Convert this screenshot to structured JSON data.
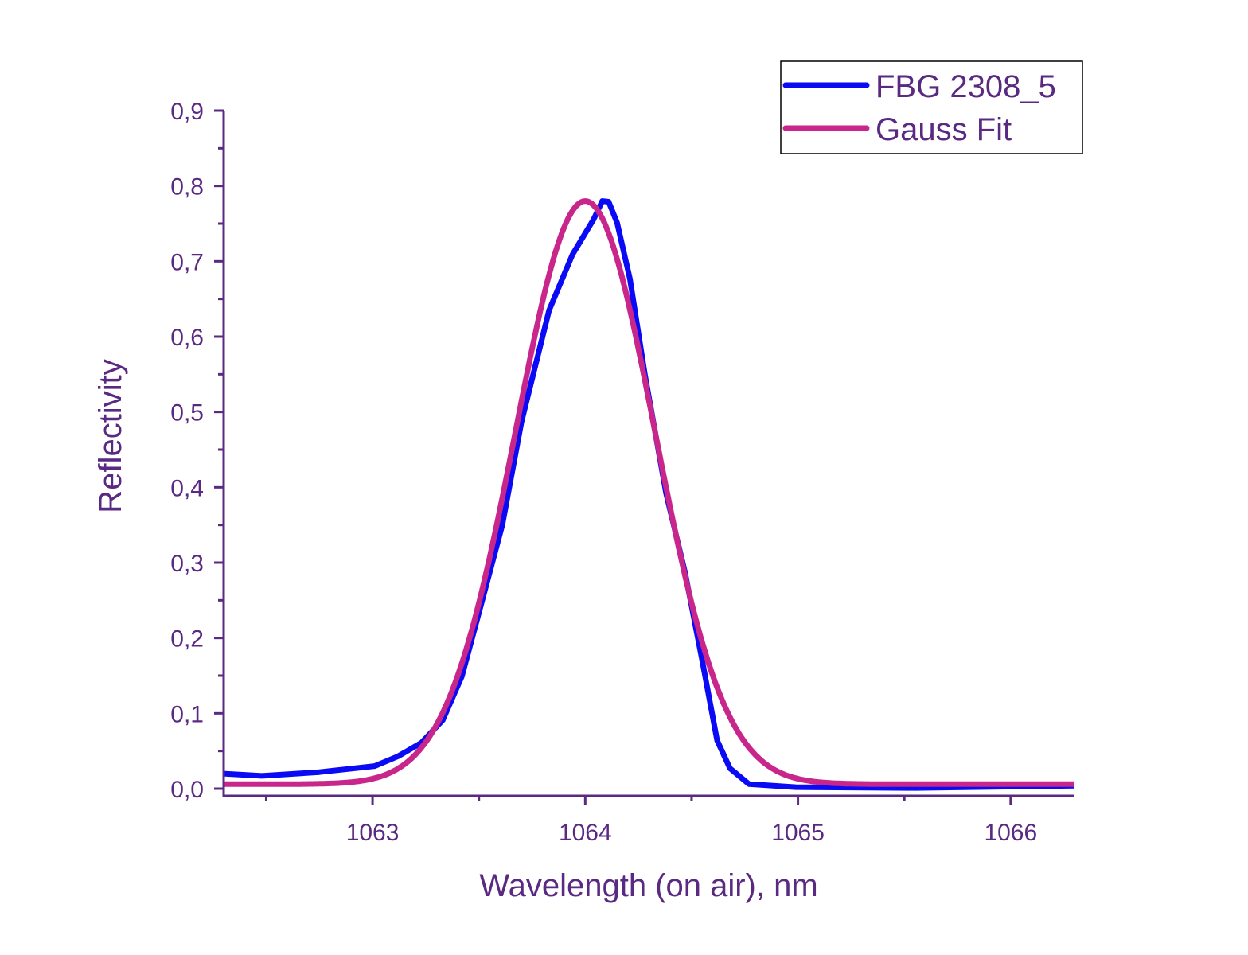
{
  "chart_data": {
    "type": "line",
    "title": "",
    "xlabel": "Wavelength (on air), nm",
    "ylabel": "Reflectivity",
    "xlim": [
      1062.3,
      1066.3
    ],
    "ylim": [
      -0.01,
      0.9
    ],
    "xticks": [
      1063,
      1064,
      1065,
      1066
    ],
    "xtick_labels": [
      "1063",
      "1064",
      "1065",
      "1066"
    ],
    "yticks": [
      0.0,
      0.1,
      0.2,
      0.3,
      0.4,
      0.5,
      0.6,
      0.7,
      0.8,
      0.9
    ],
    "ytick_labels": [
      "0,0",
      "0,1",
      "0,2",
      "0,3",
      "0,4",
      "0,5",
      "0,6",
      "0,7",
      "0,8",
      "0,9"
    ],
    "grid": false,
    "legend_position": "top-right",
    "series": [
      {
        "name": "FBG 2308_5",
        "color": "#0a0af5",
        "x": [
          1062.3,
          1062.48,
          1062.75,
          1063.01,
          1063.12,
          1063.23,
          1063.33,
          1063.42,
          1063.51,
          1063.61,
          1063.7,
          1063.83,
          1063.94,
          1064.04,
          1064.08,
          1064.11,
          1064.15,
          1064.21,
          1064.28,
          1064.38,
          1064.47,
          1064.55,
          1064.62,
          1064.68,
          1064.77,
          1064.99,
          1065.55,
          1066.3
        ],
        "y": [
          0.02,
          0.017,
          0.022,
          0.03,
          0.043,
          0.061,
          0.091,
          0.149,
          0.244,
          0.35,
          0.487,
          0.635,
          0.709,
          0.756,
          0.78,
          0.779,
          0.751,
          0.677,
          0.55,
          0.392,
          0.286,
          0.17,
          0.064,
          0.027,
          0.006,
          0.002,
          0.001,
          0.004
        ]
      },
      {
        "name": "Gauss Fit",
        "color": "#c8268a",
        "model": "gaussian",
        "y0": 0.006,
        "amplitude": 0.774,
        "center": 1064.0,
        "sigma": 0.327
      }
    ]
  }
}
